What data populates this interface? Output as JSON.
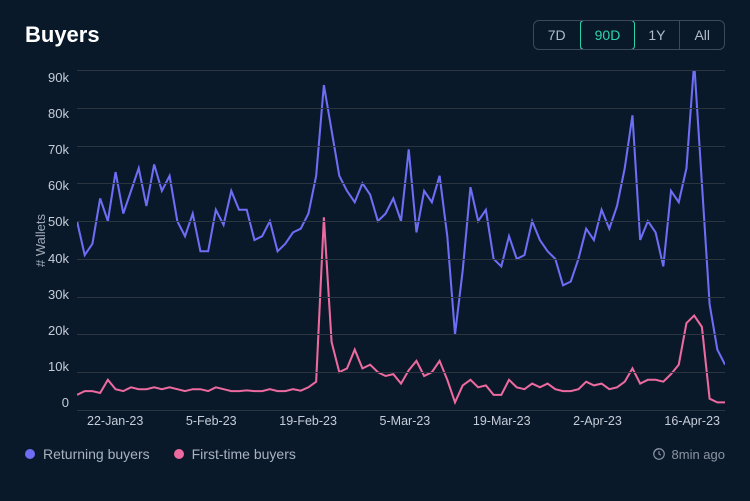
{
  "title": "Buyers",
  "range_options": [
    {
      "label": "7D",
      "active": false
    },
    {
      "label": "90D",
      "active": true
    },
    {
      "label": "1Y",
      "active": false
    },
    {
      "label": "All",
      "active": false
    }
  ],
  "chart": {
    "type": "line",
    "background_color": "#0a1929",
    "grid_color": "#2a3540",
    "text_color": "#c5cdd8",
    "ylabel": "# Wallets",
    "ylim": [
      0,
      90000
    ],
    "y_ticks": [
      "90k",
      "80k",
      "70k",
      "60k",
      "50k",
      "40k",
      "30k",
      "20k",
      "10k",
      "0"
    ],
    "x_ticks": [
      "22-Jan-23",
      "5-Feb-23",
      "19-Feb-23",
      "5-Mar-23",
      "19-Mar-23",
      "2-Apr-23",
      "16-Apr-23"
    ],
    "line_width": 2,
    "series": [
      {
        "name": "Returning buyers",
        "color": "#6d6df5",
        "values": [
          50000,
          41000,
          44000,
          56000,
          50000,
          63000,
          52000,
          58000,
          64000,
          54000,
          65000,
          58000,
          62000,
          50000,
          46000,
          52000,
          42000,
          42000,
          53000,
          49000,
          58000,
          53000,
          53000,
          45000,
          46000,
          50000,
          42000,
          44000,
          47000,
          48000,
          52000,
          62000,
          86000,
          74000,
          62000,
          58000,
          55000,
          60000,
          57000,
          50000,
          52000,
          56000,
          50000,
          69000,
          47000,
          58000,
          55000,
          62000,
          46000,
          20000,
          37000,
          59000,
          50000,
          53000,
          40000,
          38000,
          46000,
          40000,
          41000,
          50000,
          45000,
          42000,
          40000,
          33000,
          34000,
          40000,
          48000,
          45000,
          53000,
          48000,
          54000,
          64000,
          78000,
          45000,
          50000,
          47000,
          38000,
          58000,
          55000,
          64000,
          92000,
          60000,
          28000,
          16000,
          12000
        ]
      },
      {
        "name": "First-time buyers",
        "color": "#ec6a9f",
        "values": [
          4000,
          5000,
          5000,
          4500,
          8000,
          5500,
          5000,
          6000,
          5500,
          5500,
          6000,
          5500,
          6000,
          5500,
          5000,
          5500,
          5500,
          5000,
          6000,
          5500,
          5000,
          5000,
          5200,
          5000,
          5000,
          5500,
          5000,
          5000,
          5500,
          5100,
          6000,
          7500,
          51000,
          18000,
          10000,
          11000,
          16000,
          11000,
          12000,
          10000,
          9000,
          9500,
          7000,
          10500,
          13000,
          9000,
          10000,
          13000,
          8000,
          2000,
          6500,
          8000,
          6000,
          6500,
          4000,
          4000,
          8000,
          6000,
          5500,
          7000,
          6000,
          7000,
          5500,
          5000,
          5000,
          5500,
          7500,
          6500,
          7000,
          5500,
          6000,
          7500,
          11000,
          7000,
          8000,
          8000,
          7500,
          9500,
          12000,
          23000,
          25000,
          22000,
          3000,
          2000,
          2000
        ]
      }
    ]
  },
  "legend": [
    {
      "label": "Returning buyers",
      "color": "#6d6df5"
    },
    {
      "label": "First-time buyers",
      "color": "#ec6a9f"
    }
  ],
  "timestamp": "8min ago"
}
